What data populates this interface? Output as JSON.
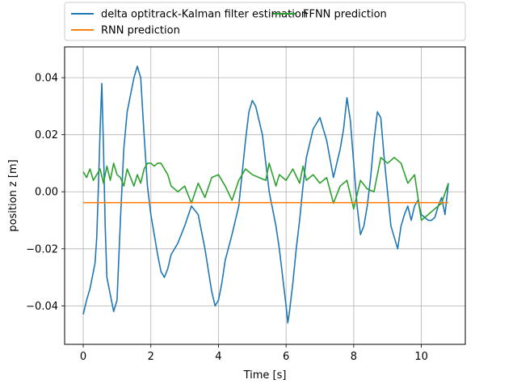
{
  "chart_data": {
    "type": "line",
    "title": "",
    "xlabel": "Time [s]",
    "ylabel": "position z [m]",
    "xlim": [
      -0.55,
      11.3
    ],
    "ylim": [
      -0.0535,
      0.0508
    ],
    "xticks": [
      0,
      2,
      4,
      6,
      8,
      10
    ],
    "yticks": [
      -0.04,
      -0.02,
      0.0,
      0.02,
      0.04
    ],
    "xtick_labels": [
      "0",
      "2",
      "4",
      "6",
      "8",
      "10"
    ],
    "ytick_labels": [
      "−0.04",
      "−0.02",
      "0.00",
      "0.02",
      "0.04"
    ],
    "grid": true,
    "legend_position": "top (above plot), two columns",
    "series": [
      {
        "name": "delta optitrack-Kalman filter estimation",
        "color": "#1f77b4",
        "x": [
          0.0,
          0.1,
          0.2,
          0.3,
          0.35,
          0.4,
          0.45,
          0.5,
          0.55,
          0.6,
          0.65,
          0.7,
          0.8,
          0.9,
          1.0,
          1.1,
          1.2,
          1.3,
          1.4,
          1.5,
          1.6,
          1.7,
          1.8,
          1.9,
          2.0,
          2.1,
          2.2,
          2.3,
          2.4,
          2.5,
          2.6,
          2.8,
          3.0,
          3.2,
          3.4,
          3.6,
          3.8,
          3.9,
          4.0,
          4.1,
          4.2,
          4.4,
          4.6,
          4.8,
          4.9,
          5.0,
          5.1,
          5.2,
          5.3,
          5.4,
          5.5,
          5.6,
          5.7,
          5.8,
          5.9,
          6.0,
          6.05,
          6.1,
          6.2,
          6.3,
          6.4,
          6.5,
          6.6,
          6.8,
          7.0,
          7.2,
          7.4,
          7.6,
          7.7,
          7.8,
          7.9,
          8.0,
          8.1,
          8.2,
          8.3,
          8.4,
          8.5,
          8.6,
          8.7,
          8.8,
          8.9,
          9.0,
          9.1,
          9.2,
          9.3,
          9.4,
          9.5,
          9.6,
          9.7,
          9.8,
          9.9,
          10.0,
          10.1,
          10.2,
          10.3,
          10.4,
          10.5,
          10.6,
          10.7,
          10.8
        ],
        "y": [
          -0.043,
          -0.038,
          -0.034,
          -0.028,
          -0.025,
          -0.016,
          0.002,
          0.022,
          0.038,
          0.015,
          -0.012,
          -0.03,
          -0.036,
          -0.042,
          -0.038,
          -0.01,
          0.015,
          0.028,
          0.034,
          0.04,
          0.044,
          0.04,
          0.02,
          0.002,
          -0.008,
          -0.015,
          -0.022,
          -0.028,
          -0.03,
          -0.027,
          -0.022,
          -0.018,
          -0.012,
          -0.005,
          -0.008,
          -0.02,
          -0.035,
          -0.04,
          -0.038,
          -0.032,
          -0.024,
          -0.015,
          -0.005,
          0.018,
          0.028,
          0.032,
          0.03,
          0.025,
          0.02,
          0.01,
          0.0,
          -0.006,
          -0.012,
          -0.02,
          -0.03,
          -0.04,
          -0.046,
          -0.042,
          -0.032,
          -0.02,
          -0.01,
          0.002,
          0.012,
          0.022,
          0.026,
          0.018,
          0.005,
          0.015,
          0.022,
          0.033,
          0.025,
          0.01,
          -0.005,
          -0.015,
          -0.012,
          -0.005,
          0.005,
          0.018,
          0.028,
          0.026,
          0.012,
          0.0,
          -0.012,
          -0.016,
          -0.02,
          -0.012,
          -0.008,
          -0.005,
          -0.01,
          -0.005,
          -0.003,
          -0.008,
          -0.009,
          -0.01,
          -0.01,
          -0.009,
          -0.005,
          -0.002,
          -0.008,
          0.003
        ]
      },
      {
        "name": "RNN prediction",
        "color": "#ff7f0e",
        "x": [
          0.0,
          10.8
        ],
        "y": [
          -0.0038,
          -0.0038
        ]
      },
      {
        "name": "FFNN prediction",
        "color": "#2ca02c",
        "x": [
          0.0,
          0.1,
          0.2,
          0.3,
          0.4,
          0.5,
          0.6,
          0.7,
          0.8,
          0.9,
          1.0,
          1.1,
          1.2,
          1.3,
          1.4,
          1.5,
          1.6,
          1.7,
          1.8,
          1.9,
          2.0,
          2.1,
          2.2,
          2.3,
          2.4,
          2.5,
          2.6,
          2.8,
          3.0,
          3.2,
          3.4,
          3.6,
          3.8,
          4.0,
          4.2,
          4.4,
          4.6,
          4.8,
          5.0,
          5.2,
          5.4,
          5.5,
          5.6,
          5.7,
          5.8,
          6.0,
          6.2,
          6.4,
          6.5,
          6.6,
          6.8,
          7.0,
          7.2,
          7.4,
          7.6,
          7.8,
          8.0,
          8.2,
          8.4,
          8.6,
          8.8,
          9.0,
          9.2,
          9.4,
          9.6,
          9.8,
          10.0,
          10.2,
          10.4,
          10.6,
          10.8
        ],
        "y": [
          0.007,
          0.005,
          0.008,
          0.004,
          0.006,
          0.008,
          0.003,
          0.009,
          0.004,
          0.01,
          0.006,
          0.005,
          0.002,
          0.008,
          0.005,
          0.002,
          0.006,
          0.003,
          0.008,
          0.01,
          0.01,
          0.009,
          0.01,
          0.01,
          0.008,
          0.006,
          0.002,
          0.0,
          0.002,
          -0.004,
          0.003,
          -0.002,
          0.005,
          0.006,
          0.002,
          -0.003,
          0.004,
          0.008,
          0.006,
          0.005,
          0.004,
          0.01,
          0.006,
          0.002,
          0.006,
          0.004,
          0.008,
          0.003,
          0.009,
          0.004,
          0.006,
          0.003,
          0.005,
          -0.004,
          0.002,
          0.004,
          -0.006,
          0.004,
          0.001,
          0.0,
          0.012,
          0.01,
          0.012,
          0.01,
          0.003,
          0.006,
          -0.01,
          -0.008,
          -0.006,
          -0.004,
          0.003
        ]
      }
    ]
  }
}
